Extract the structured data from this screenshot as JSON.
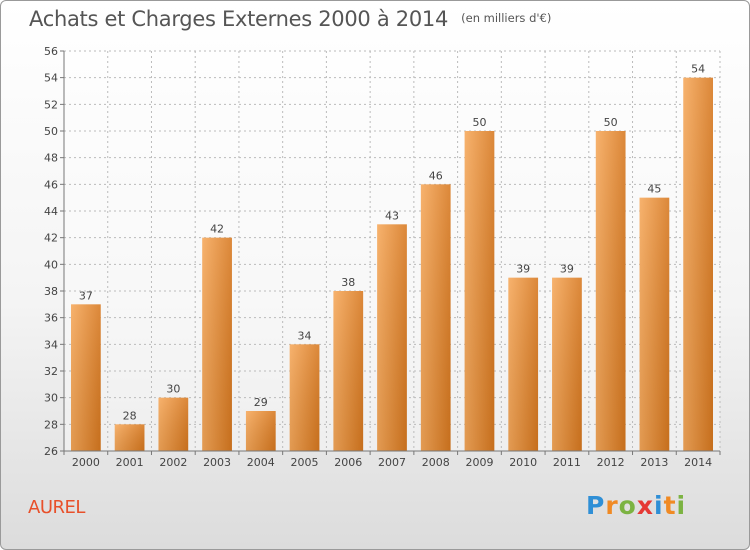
{
  "title": "Achats et Charges Externes 2000 à 2014",
  "unit": "(en milliers d'€)",
  "commune": "AUREL",
  "logo": {
    "text": "Proxiti",
    "letters": [
      {
        "ch": "P",
        "color": "#2f8fd6"
      },
      {
        "ch": "r",
        "color": "#f08a24"
      },
      {
        "ch": "o",
        "color": "#7cb342"
      },
      {
        "ch": "x",
        "color": "#e53935"
      },
      {
        "ch": "i",
        "color": "#2f8fd6"
      },
      {
        "ch": "t",
        "color": "#f08a24"
      },
      {
        "ch": "i",
        "color": "#7cb342"
      }
    ]
  },
  "colors": {
    "bar_light": "#f6a85a",
    "bar_dark": "#d7781f",
    "grid": "#bbbbbb",
    "axis": "#777777"
  },
  "chart_data": {
    "type": "bar",
    "categories": [
      "2000",
      "2001",
      "2002",
      "2003",
      "2004",
      "2005",
      "2006",
      "2007",
      "2008",
      "2009",
      "2010",
      "2011",
      "2012",
      "2013",
      "2014"
    ],
    "values": [
      37,
      28,
      30,
      42,
      29,
      34,
      38,
      43,
      46,
      50,
      39,
      39,
      50,
      45,
      54
    ],
    "ylim": [
      26,
      56
    ],
    "yticks": [
      26,
      28,
      30,
      32,
      34,
      36,
      38,
      40,
      42,
      44,
      46,
      48,
      50,
      52,
      54,
      56
    ],
    "grid": true,
    "data_labels": true
  }
}
